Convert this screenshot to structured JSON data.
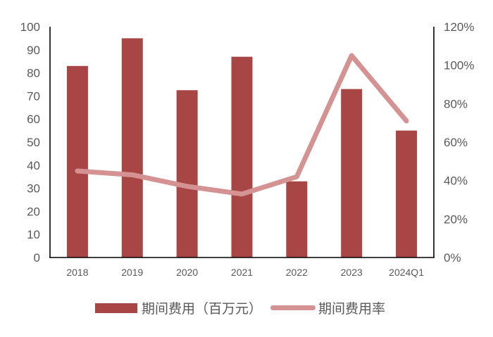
{
  "chart_data": {
    "type": "bar+line",
    "title": "",
    "categories": [
      "2018",
      "2019",
      "2020",
      "2021",
      "2022",
      "2023",
      "2024Q1"
    ],
    "series": [
      {
        "name": "期间费用（百万元）",
        "type": "bar",
        "axis": "left",
        "color": "#A84545",
        "values": [
          83,
          95,
          72.5,
          87,
          33,
          73,
          55
        ]
      },
      {
        "name": "期间费用率",
        "type": "line",
        "axis": "right",
        "color": "#D49292",
        "values": [
          45,
          43,
          37,
          33,
          42,
          105,
          71
        ],
        "unit": "%"
      }
    ],
    "left_axis": {
      "min": 0,
      "max": 100,
      "step": 10,
      "ticks": [
        "0",
        "10",
        "20",
        "30",
        "40",
        "50",
        "60",
        "70",
        "80",
        "90",
        "100"
      ]
    },
    "right_axis": {
      "min": 0,
      "max": 120,
      "step": 20,
      "ticks": [
        "0%",
        "20%",
        "40%",
        "60%",
        "80%",
        "100%",
        "120%"
      ]
    },
    "grid": false,
    "legend_position": "bottom",
    "xlabel": "",
    "ylabel": ""
  },
  "legend": {
    "bar_label": "期间费用（百万元）",
    "line_label": "期间费用率"
  }
}
